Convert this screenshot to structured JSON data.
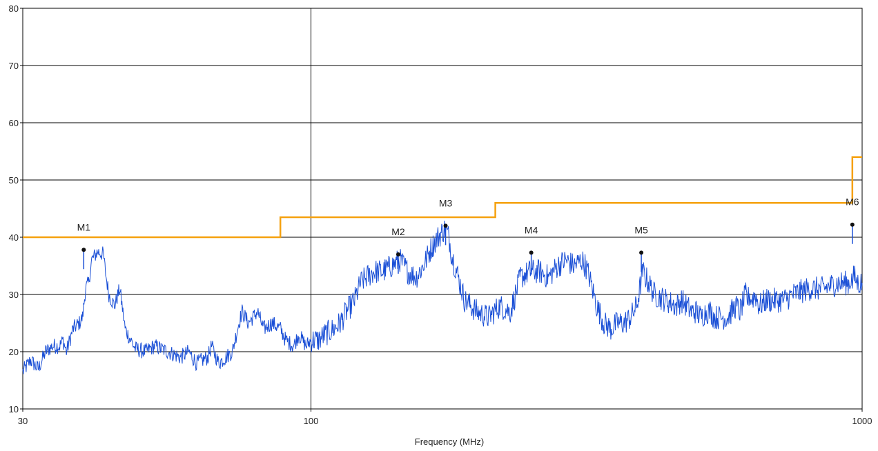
{
  "chart_data": {
    "type": "line",
    "title": "",
    "xlabel": "Frequency (MHz)",
    "ylabel": "",
    "x_scale": "log",
    "xlim": [
      30,
      1000
    ],
    "ylim": [
      10,
      80
    ],
    "x_ticks": [
      30,
      100,
      1000
    ],
    "x_tick_labels": [
      "30",
      "100",
      "1000"
    ],
    "y_ticks": [
      10,
      20,
      30,
      40,
      50,
      60,
      70,
      80
    ],
    "y_tick_labels": [
      "10",
      "20",
      "30",
      "40",
      "50",
      "60",
      "70",
      "80"
    ],
    "grid": true,
    "colors": {
      "measurement": "#1a4fd6",
      "limit": "#f5a10f",
      "grid": "#000000"
    },
    "limit_line": {
      "x": [
        30,
        88,
        88,
        216,
        216,
        960,
        960,
        1000
      ],
      "y": [
        40,
        40,
        43.5,
        43.5,
        46,
        46,
        54,
        54
      ]
    },
    "series": [
      {
        "values": {
          "x": [
            30,
            31,
            32,
            33,
            34,
            35,
            35.5,
            36,
            37,
            38,
            38.5,
            39,
            39.5,
            40,
            41,
            42,
            42.5,
            43,
            44,
            45,
            46,
            48,
            50,
            52,
            55,
            58,
            60,
            62,
            65,
            66,
            68,
            70,
            72,
            74,
            75,
            77,
            80,
            82,
            85,
            88,
            90,
            93,
            95,
            98,
            100,
            103,
            106,
            110,
            113,
            116,
            120,
            123,
            126,
            130,
            135,
            140,
            145,
            150,
            155,
            160,
            165,
            170,
            175,
            178,
            180,
            185,
            190,
            200,
            210,
            220,
            230,
            240,
            250,
            260,
            270,
            280,
            290,
            300,
            310,
            315,
            320,
            330,
            340,
            350,
            360,
            370,
            380,
            390,
            400,
            420,
            440,
            460,
            470,
            480,
            490,
            500,
            510,
            520,
            530,
            540,
            550,
            570,
            590,
            600,
            610,
            615,
            620,
            625,
            630,
            640,
            650,
            670,
            700,
            720,
            750,
            800,
            850,
            900,
            930,
            950,
            955,
            960,
            965,
            970,
            980,
            1000
          ],
          "y": [
            16.5,
            18.5,
            17,
            20,
            21,
            21,
            22,
            20,
            24,
            25,
            26,
            31,
            32,
            36,
            37.5,
            37,
            33,
            30,
            28,
            31,
            24,
            20.5,
            20,
            21,
            20,
            19,
            20,
            18,
            19,
            21,
            18,
            19,
            20,
            25,
            27,
            25,
            27,
            24,
            25,
            24,
            22,
            21,
            23,
            21,
            22,
            22,
            23,
            24,
            25,
            27,
            29,
            32,
            33,
            34,
            34,
            35,
            36,
            34,
            33,
            35,
            38,
            40,
            41.5,
            40,
            37,
            33,
            29,
            27,
            26,
            28,
            27,
            33,
            34,
            34,
            33,
            35,
            36,
            35,
            36,
            35,
            33,
            28,
            25,
            24,
            25,
            25,
            26,
            28,
            34,
            30,
            29,
            28,
            29,
            28,
            27,
            27,
            26,
            27,
            27,
            26,
            26,
            26,
            28,
            27,
            29,
            30,
            29,
            30,
            29,
            30,
            28,
            29,
            29,
            29,
            30,
            31,
            31,
            32,
            32,
            32,
            33,
            32,
            33,
            33,
            32,
            32
          ]
        }
      }
    ],
    "markers": [
      {
        "label": "M1",
        "x": 38.7,
        "y": 37.8
      },
      {
        "label": "M2",
        "x": 144,
        "y": 37.0
      },
      {
        "label": "M3",
        "x": 175.5,
        "y": 42.0
      },
      {
        "label": "M4",
        "x": 251,
        "y": 37.3
      },
      {
        "label": "M5",
        "x": 397.5,
        "y": 37.3
      },
      {
        "label": "M6",
        "x": 960,
        "y": 42.2
      }
    ]
  }
}
